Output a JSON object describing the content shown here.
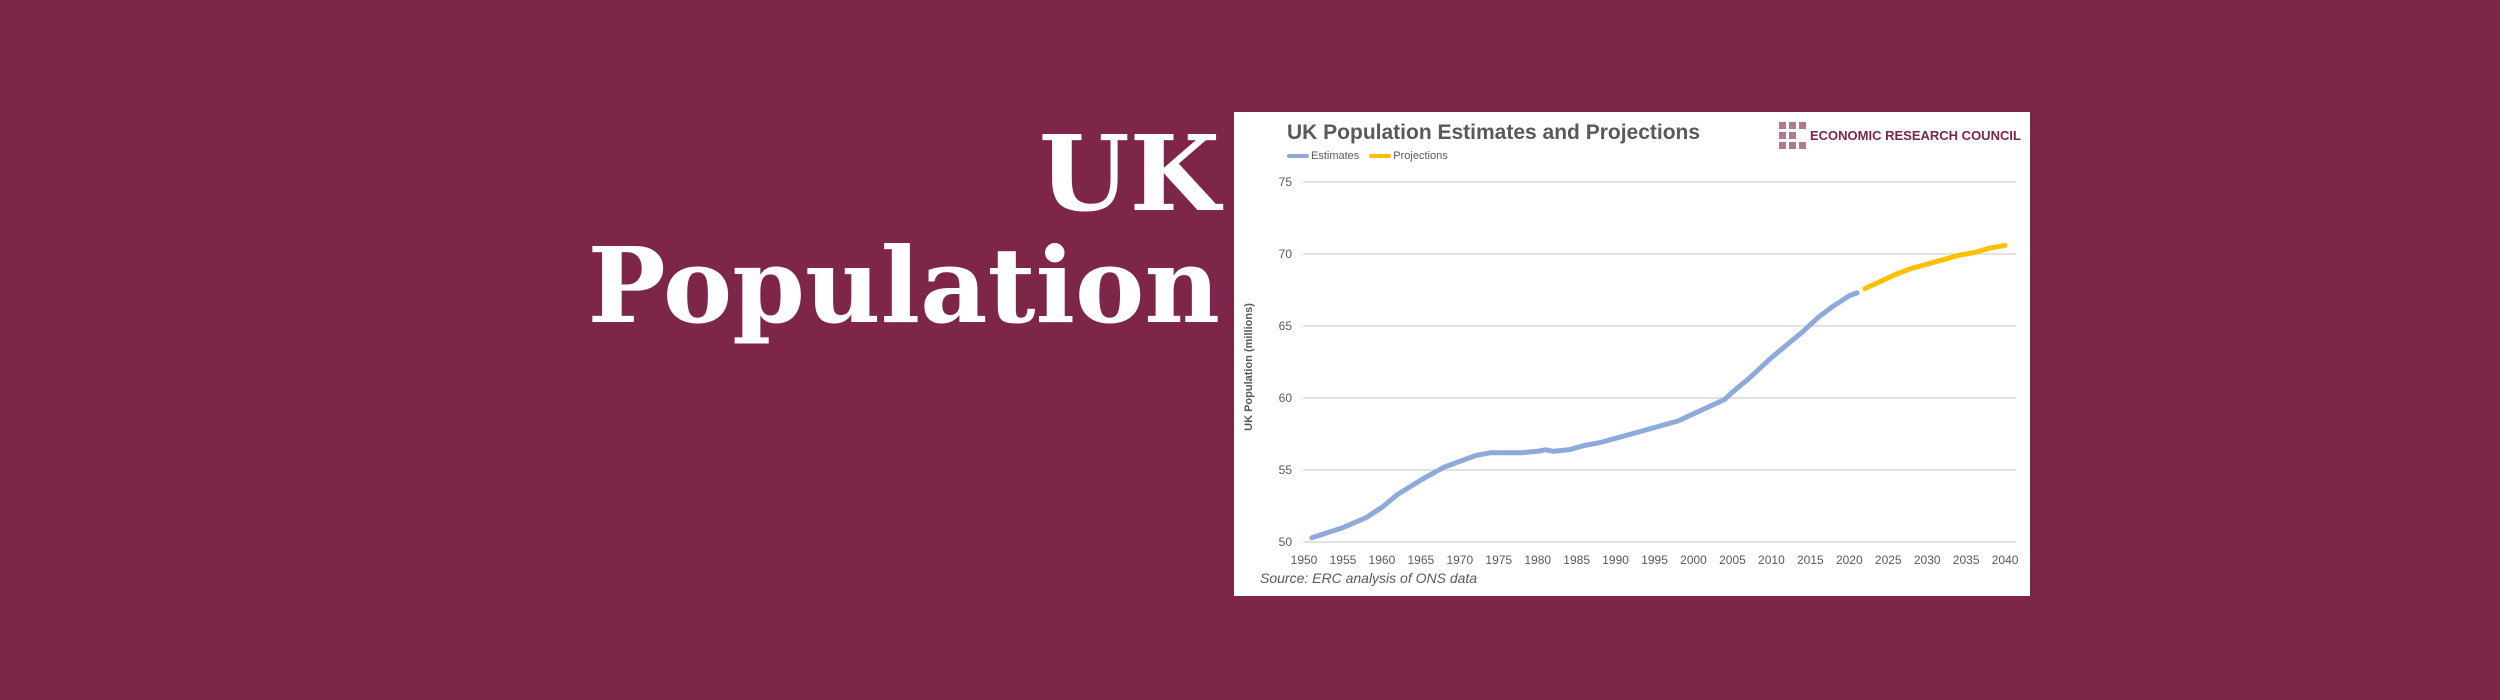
{
  "headline": {
    "line1": "UK",
    "line2": "Population"
  },
  "chart_data": {
    "type": "line",
    "title": "UK Population Estimates and Projections",
    "ylabel": "UK Population (millions)",
    "xlabel": "",
    "source": "Source: ERC analysis of ONS data",
    "brand": "ECONOMIC RESEARCH COUNCIL",
    "ylim": [
      50,
      75
    ],
    "yticks": [
      50,
      55,
      60,
      65,
      70,
      75
    ],
    "xticks": [
      1950,
      1955,
      1960,
      1965,
      1970,
      1975,
      1980,
      1985,
      1990,
      1995,
      2000,
      2005,
      2010,
      2015,
      2020,
      2025,
      2030,
      2035,
      2040
    ],
    "grid": true,
    "legend_placement": "top-left",
    "series": [
      {
        "name": "Estimates",
        "color": "#8eaadb",
        "x": [
          1951,
          1955,
          1958,
          1960,
          1962,
          1965,
          1968,
          1970,
          1972,
          1974,
          1976,
          1978,
          1980,
          1981,
          1982,
          1984,
          1986,
          1988,
          1990,
          1992,
          1994,
          1996,
          1998,
          2000,
          2002,
          2004,
          2005,
          2007,
          2010,
          2012,
          2014,
          2016,
          2018,
          2020,
          2021
        ],
        "y": [
          50.3,
          51.0,
          51.7,
          52.4,
          53.3,
          54.3,
          55.2,
          55.6,
          56.0,
          56.2,
          56.2,
          56.2,
          56.3,
          56.4,
          56.3,
          56.4,
          56.7,
          56.9,
          57.2,
          57.5,
          57.8,
          58.1,
          58.4,
          58.9,
          59.4,
          59.9,
          60.4,
          61.3,
          62.8,
          63.7,
          64.6,
          65.6,
          66.4,
          67.1,
          67.3
        ]
      },
      {
        "name": "Projections",
        "color": "#ffc000",
        "x": [
          2022,
          2024,
          2026,
          2028,
          2030,
          2032,
          2034,
          2036,
          2038,
          2040
        ],
        "y": [
          67.6,
          68.1,
          68.6,
          69.0,
          69.3,
          69.6,
          69.9,
          70.1,
          70.4,
          70.6
        ]
      }
    ]
  }
}
